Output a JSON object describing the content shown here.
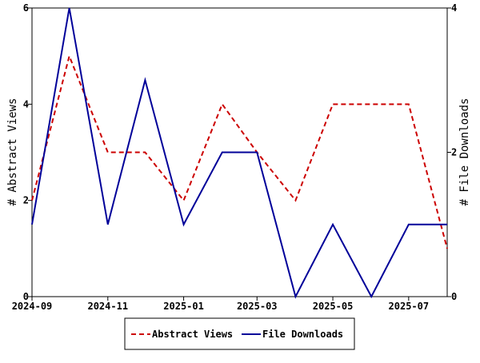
{
  "chart_data": {
    "type": "line",
    "x": [
      "2024-09",
      "2024-10",
      "2024-11",
      "2024-12",
      "2025-01",
      "2025-02",
      "2025-03",
      "2025-04",
      "2025-05",
      "2025-06",
      "2025-07",
      "2025-08"
    ],
    "xlim": [
      "2024-09",
      "2025-08"
    ],
    "xticks": [
      "2024-09",
      "2024-11",
      "2025-01",
      "2025-03",
      "2025-05",
      "2025-07"
    ],
    "ylabel": "# Abstract Views",
    "ylim": [
      0,
      6
    ],
    "yticks": [
      0,
      2,
      4,
      6
    ],
    "y2label": "# File Downloads",
    "y2lim": [
      0,
      4
    ],
    "y2ticks": [
      0,
      2,
      4
    ],
    "series": [
      {
        "name": "Abstract Views",
        "color": "#cc0000",
        "dash": true,
        "values": [
          2,
          5,
          3,
          3,
          2,
          4,
          3,
          2,
          4,
          4,
          4,
          1
        ]
      },
      {
        "name": "File Downloads",
        "color": "#000099",
        "axis": "y2",
        "values": [
          1,
          4,
          1,
          3,
          1,
          2,
          2,
          0,
          1,
          0,
          1,
          1
        ]
      }
    ]
  }
}
